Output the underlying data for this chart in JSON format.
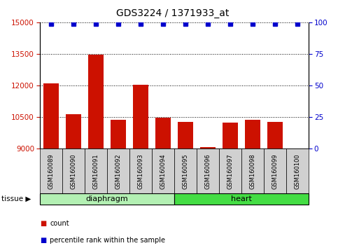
{
  "title": "GDS3224 / 1371933_at",
  "samples": [
    "GSM160089",
    "GSM160090",
    "GSM160091",
    "GSM160092",
    "GSM160093",
    "GSM160094",
    "GSM160095",
    "GSM160096",
    "GSM160097",
    "GSM160098",
    "GSM160099",
    "GSM160100"
  ],
  "counts": [
    12100,
    10650,
    13480,
    10380,
    12050,
    10480,
    10280,
    9080,
    10230,
    10380,
    10260,
    9000
  ],
  "percentiles": [
    99,
    99,
    99,
    99,
    99,
    99,
    99,
    99,
    99,
    99,
    99,
    99
  ],
  "tissue_groups": [
    {
      "label": "diaphragm",
      "start": 0,
      "end": 6,
      "color": "#b3f0b3"
    },
    {
      "label": "heart",
      "start": 6,
      "end": 12,
      "color": "#44dd44"
    }
  ],
  "ylim_left": [
    9000,
    15000
  ],
  "ylim_right": [
    0,
    100
  ],
  "yticks_left": [
    9000,
    10500,
    12000,
    13500,
    15000
  ],
  "yticks_right": [
    0,
    25,
    50,
    75,
    100
  ],
  "bar_color": "#cc1100",
  "dot_color": "#0000cc",
  "grid_color": "#000000",
  "title_fontsize": 10,
  "axis_label_color_left": "#cc1100",
  "axis_label_color_right": "#0000cc",
  "tissue_label": "tissue",
  "legend_count_label": "count",
  "legend_pct_label": "percentile rank within the sample",
  "sample_box_color": "#d0d0d0"
}
